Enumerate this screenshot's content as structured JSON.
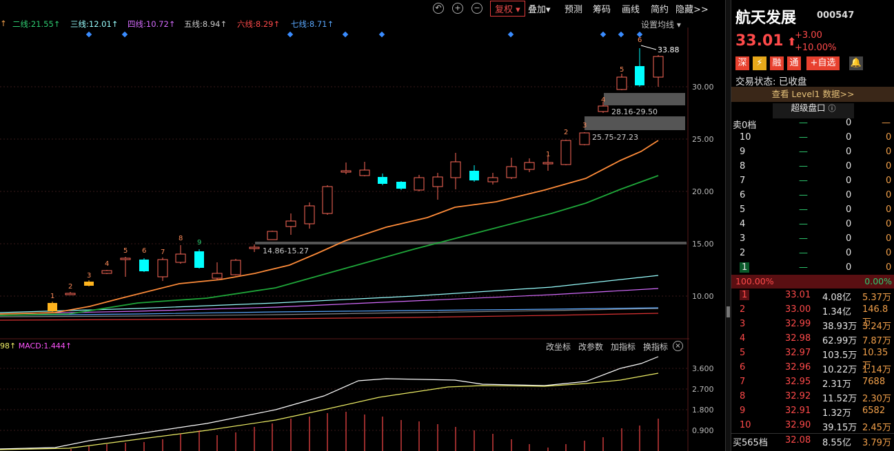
{
  "toolbar": {
    "undo_icon": "undo-icon",
    "zoom_in_icon": "zoom-in-icon",
    "zoom_out_icon": "zoom-out-icon",
    "fuquan": "复权",
    "diejia": "叠加",
    "yuce": "预测",
    "choumas": "筹码",
    "huaxian": "画线",
    "jianyue": "简约",
    "yincang": "隐藏>>"
  },
  "ma_legend": {
    "ma2": "二线:21.55",
    "ma3": "三线:12.01",
    "ma4": "四线:10.72",
    "ma5": "五线:8.94",
    "ma6": "六线:8.29",
    "ma7": "七线:8.71",
    "settings": "设置均线"
  },
  "price_axis": [
    "30.00",
    "25.00",
    "20.00",
    "15.00",
    "10.00"
  ],
  "zones": [
    "28.16-29.50",
    "25.75-27.23",
    "14.86-15.27"
  ],
  "high_marker": "33.88",
  "macd": {
    "legend": "MACD:1.444",
    "left_value": "98",
    "ticks": [
      "3.600",
      "2.700",
      "1.800",
      "0.900"
    ],
    "tools": [
      "改坐标",
      "改参数",
      "加指标",
      "换指标"
    ]
  },
  "stock": {
    "name": "航天发展",
    "code": "000547",
    "price": "33.01",
    "change": "+3.00",
    "change_pct": "+10.00%",
    "badges": [
      "深",
      "⚡",
      "融",
      "通"
    ],
    "add_watch": "+自选",
    "status": "交易状态: 已收盘",
    "level1": "查看 Level1 数据>>",
    "super_panel": "超级盘口"
  },
  "orderbook_top": {
    "label": "卖0档",
    "dash": "—",
    "vol": "0",
    "dash2": "—"
  },
  "sell_levels": [
    {
      "lv": "10",
      "p": "—",
      "v": "0",
      "o": "0"
    },
    {
      "lv": "9",
      "p": "—",
      "v": "0",
      "o": "0"
    },
    {
      "lv": "8",
      "p": "—",
      "v": "0",
      "o": "0"
    },
    {
      "lv": "7",
      "p": "—",
      "v": "0",
      "o": "0"
    },
    {
      "lv": "6",
      "p": "—",
      "v": "0",
      "o": "0"
    },
    {
      "lv": "5",
      "p": "—",
      "v": "0",
      "o": "0"
    },
    {
      "lv": "4",
      "p": "—",
      "v": "0",
      "o": "0"
    },
    {
      "lv": "3",
      "p": "—",
      "v": "0",
      "o": "0"
    },
    {
      "lv": "2",
      "p": "—",
      "v": "0",
      "o": "0"
    },
    {
      "lv": "1",
      "p": "—",
      "v": "0",
      "o": "0"
    }
  ],
  "ratio": {
    "left": "100.00%",
    "right": "0.00%"
  },
  "buy_levels": [
    {
      "lv": "1",
      "p": "33.01",
      "v": "4.08亿",
      "o": "5.37万"
    },
    {
      "lv": "2",
      "p": "33.00",
      "v": "1.34亿",
      "o": "146.8万"
    },
    {
      "lv": "3",
      "p": "32.99",
      "v": "38.93万",
      "o": "3.24万"
    },
    {
      "lv": "4",
      "p": "32.98",
      "v": "62.99万",
      "o": "7.87万"
    },
    {
      "lv": "5",
      "p": "32.97",
      "v": "103.5万",
      "o": "10.35万"
    },
    {
      "lv": "6",
      "p": "32.96",
      "v": "10.22万",
      "o": "1.14万"
    },
    {
      "lv": "7",
      "p": "32.95",
      "v": "2.31万",
      "o": "7688"
    },
    {
      "lv": "8",
      "p": "32.92",
      "v": "11.52万",
      "o": "2.30万"
    },
    {
      "lv": "9",
      "p": "32.91",
      "v": "1.32万",
      "o": "6582"
    },
    {
      "lv": "10",
      "p": "32.90",
      "v": "39.15万",
      "o": "2.45万"
    }
  ],
  "buy_bottom": {
    "label": "买565档",
    "p": "32.08",
    "v": "8.55亿",
    "o": "3.79万"
  },
  "candle_labels": [
    "1",
    "2",
    "3",
    "4",
    "5",
    "6",
    "7",
    "8",
    "9",
    "1",
    "2",
    "3",
    "4",
    "5",
    "6"
  ],
  "colors": {
    "up": "#ff4a4a",
    "down": "#00ffff",
    "ma_orange": "#ff8c3a",
    "ma_green": "#1fa83a",
    "panel_red": "#e8412f"
  }
}
